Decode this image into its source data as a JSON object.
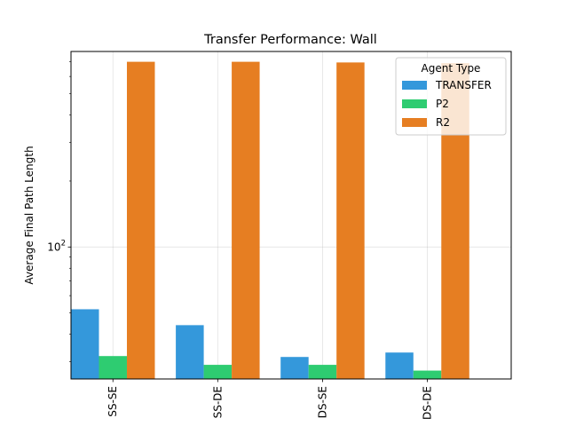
{
  "chart_data": {
    "type": "bar",
    "title": "Transfer Performance: Wall",
    "xlabel": "",
    "ylabel": "Average Final Path Length",
    "yscale": "log",
    "ylim": [
      25,
      780
    ],
    "yticks": [
      {
        "value": 100,
        "base": "10",
        "exp": "2"
      }
    ],
    "grid": true,
    "categories": [
      "SS-SE",
      "SS-DE",
      "DS-SE",
      "DS-DE"
    ],
    "series": [
      {
        "name": "TRANSFER",
        "color": "#3498db",
        "values": [
          52,
          44,
          31.5,
          33
        ]
      },
      {
        "name": "P2",
        "color": "#2ecc71",
        "values": [
          31.8,
          29.0,
          29.0,
          27.3
        ]
      },
      {
        "name": "R2",
        "color": "#e67e22",
        "values": [
          700,
          700,
          695,
          690
        ]
      }
    ],
    "legend": {
      "title": "Agent Type",
      "position": "top-right"
    }
  }
}
